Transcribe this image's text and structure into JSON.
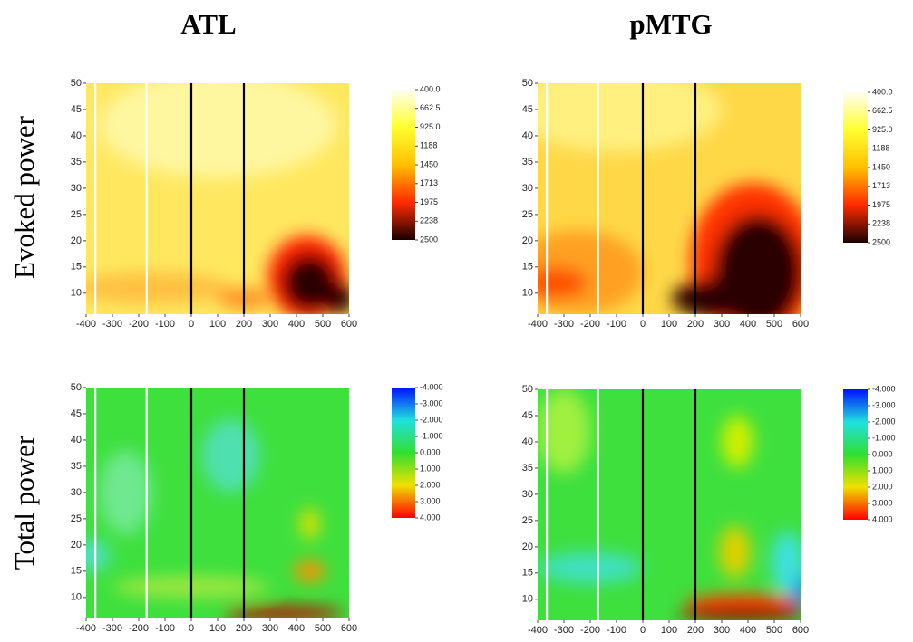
{
  "column_titles": [
    "ATL",
    "pMTG"
  ],
  "row_titles": [
    "Evoked power",
    "Total power"
  ],
  "chart_data": [
    {
      "type": "heatmap",
      "xlim": [
        -400,
        600
      ],
      "ylim": [
        6,
        50
      ],
      "xticks": [
        -400,
        -300,
        -200,
        -100,
        0,
        100,
        200,
        300,
        400,
        500,
        600
      ],
      "yticks": [
        10,
        15,
        20,
        25,
        30,
        35,
        40,
        45,
        50
      ],
      "vlines": [
        {
          "value": -365,
          "color": "#ffffff"
        },
        {
          "value": -170,
          "color": "#ffffff"
        },
        {
          "value": 0,
          "color": "#000000"
        },
        {
          "value": 200,
          "color": "#000000"
        }
      ],
      "colorbar": {
        "clim": [
          400,
          2500
        ],
        "colormap": [
          "#fffdf0",
          "#ffff30",
          "#ffc000",
          "#ff2a00",
          "#1a0000"
        ],
        "ticks": [
          {
            "value": 400,
            "label": "400.0"
          },
          {
            "value": 662.5,
            "label": "662.5"
          },
          {
            "value": 925,
            "label": "925.0"
          },
          1188,
          1450,
          1713,
          1975,
          2238,
          2500
        ]
      }
    },
    {
      "type": "heatmap",
      "xlim": [
        -400,
        600
      ],
      "ylim": [
        6,
        50
      ],
      "xticks": [
        -400,
        -300,
        -200,
        -100,
        0,
        100,
        200,
        300,
        400,
        500,
        600
      ],
      "yticks": [
        10,
        15,
        20,
        25,
        30,
        35,
        40,
        45,
        50
      ],
      "vlines": [
        {
          "value": -365,
          "color": "#ffffff"
        },
        {
          "value": -170,
          "color": "#ffffff"
        },
        {
          "value": 0,
          "color": "#000000"
        },
        {
          "value": 200,
          "color": "#000000"
        }
      ],
      "colorbar": {
        "clim": [
          400,
          2500
        ],
        "colormap": [
          "#fffdf0",
          "#ffff30",
          "#ffc000",
          "#ff2a00",
          "#1a0000"
        ],
        "ticks": [
          {
            "value": 400,
            "label": "400.0"
          },
          {
            "value": 662.5,
            "label": "662.5"
          },
          {
            "value": 925,
            "label": "925.0"
          },
          1188,
          1450,
          1713,
          1975,
          2238,
          2500
        ]
      }
    },
    {
      "type": "heatmap",
      "xlim": [
        -400,
        600
      ],
      "ylim": [
        6,
        50
      ],
      "xticks": [
        -400,
        -300,
        -200,
        -100,
        0,
        100,
        200,
        300,
        400,
        500,
        600
      ],
      "yticks": [
        10,
        15,
        20,
        25,
        30,
        35,
        40,
        45,
        50
      ],
      "vlines": [
        {
          "value": -365,
          "color": "#ffffff"
        },
        {
          "value": -170,
          "color": "#ffffff"
        },
        {
          "value": 0,
          "color": "#000000"
        },
        {
          "value": 200,
          "color": "#000000"
        }
      ],
      "colorbar": {
        "clim": [
          -4,
          4
        ],
        "colormap": [
          "#0010ff",
          "#20e0e0",
          "#30e030",
          "#f0e000",
          "#ff0000"
        ],
        "ticks": [
          {
            "value": -4,
            "label": "-4.000"
          },
          {
            "value": -3,
            "label": "-3.000"
          },
          {
            "value": -2,
            "label": "-2.000"
          },
          {
            "value": -1,
            "label": "-1.000"
          },
          {
            "value": 0,
            "label": "0.000"
          },
          {
            "value": 1,
            "label": "1.000"
          },
          {
            "value": 2,
            "label": "2.000"
          },
          {
            "value": 3,
            "label": "3.000"
          },
          {
            "value": 4,
            "label": "4.000"
          }
        ]
      }
    },
    {
      "type": "heatmap",
      "xlim": [
        -400,
        600
      ],
      "ylim": [
        6,
        50
      ],
      "xticks": [
        -400,
        -300,
        -200,
        -100,
        0,
        100,
        200,
        300,
        400,
        500,
        600
      ],
      "yticks": [
        10,
        15,
        20,
        25,
        30,
        35,
        40,
        45,
        50
      ],
      "vlines": [
        {
          "value": -365,
          "color": "#ffffff"
        },
        {
          "value": -170,
          "color": "#ffffff"
        },
        {
          "value": 0,
          "color": "#000000"
        },
        {
          "value": 200,
          "color": "#000000"
        }
      ],
      "colorbar": {
        "clim": [
          -4,
          4
        ],
        "colormap": [
          "#0010ff",
          "#20e0e0",
          "#30e030",
          "#f0e000",
          "#ff0000"
        ],
        "ticks": [
          {
            "value": -4,
            "label": "-4.000"
          },
          {
            "value": -3,
            "label": "-3.000"
          },
          {
            "value": -2,
            "label": "-2.000"
          },
          {
            "value": -1,
            "label": "-1.000"
          },
          {
            "value": 0,
            "label": "0.000"
          },
          {
            "value": 1,
            "label": "1.000"
          },
          {
            "value": 2,
            "label": "2.000"
          },
          {
            "value": 3,
            "label": "3.000"
          },
          {
            "value": 4,
            "label": "4.000"
          }
        ]
      }
    }
  ]
}
